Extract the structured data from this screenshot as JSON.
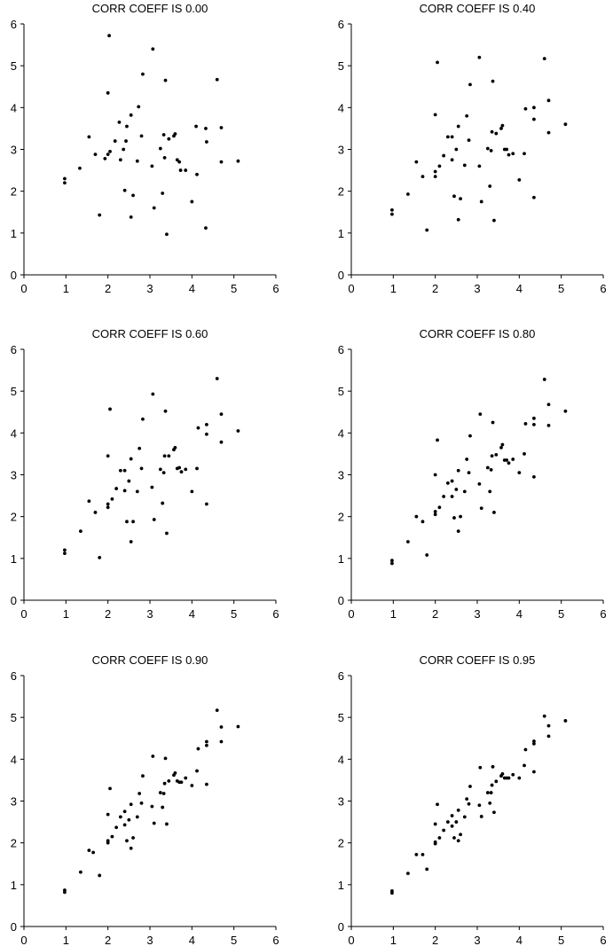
{
  "chart_data": [
    {
      "type": "scatter",
      "title": "CORR COEFF IS 0.00",
      "xlabel": "",
      "ylabel": "",
      "xlim": [
        0,
        6
      ],
      "ylim": [
        0,
        6
      ],
      "xticks": [
        0,
        1,
        2,
        3,
        4,
        5,
        6
      ],
      "yticks": [
        0,
        1,
        2,
        3,
        4,
        5,
        6
      ],
      "grid": false,
      "points": [
        [
          0.97,
          2.2
        ],
        [
          0.97,
          2.3
        ],
        [
          1.33,
          2.55
        ],
        [
          1.55,
          3.3
        ],
        [
          1.7,
          2.88
        ],
        [
          1.8,
          1.43
        ],
        [
          1.93,
          2.78
        ],
        [
          2.0,
          2.88
        ],
        [
          2.0,
          4.35
        ],
        [
          2.03,
          5.72
        ],
        [
          2.05,
          2.95
        ],
        [
          2.17,
          3.2
        ],
        [
          2.27,
          3.65
        ],
        [
          2.3,
          2.75
        ],
        [
          2.37,
          3.0
        ],
        [
          2.4,
          2.02
        ],
        [
          2.43,
          3.2
        ],
        [
          2.45,
          3.55
        ],
        [
          2.55,
          1.38
        ],
        [
          2.55,
          3.82
        ],
        [
          2.6,
          1.9
        ],
        [
          2.7,
          2.72
        ],
        [
          2.73,
          4.02
        ],
        [
          2.8,
          3.32
        ],
        [
          2.83,
          4.8
        ],
        [
          3.05,
          2.6
        ],
        [
          3.07,
          5.4
        ],
        [
          3.1,
          1.6
        ],
        [
          3.25,
          3.02
        ],
        [
          3.3,
          1.95
        ],
        [
          3.33,
          3.35
        ],
        [
          3.35,
          2.8
        ],
        [
          3.37,
          4.65
        ],
        [
          3.4,
          0.97
        ],
        [
          3.45,
          3.25
        ],
        [
          3.57,
          3.32
        ],
        [
          3.6,
          3.37
        ],
        [
          3.65,
          2.75
        ],
        [
          3.7,
          2.7
        ],
        [
          3.73,
          2.5
        ],
        [
          3.85,
          2.5
        ],
        [
          4.0,
          1.75
        ],
        [
          4.1,
          3.55
        ],
        [
          4.12,
          2.4
        ],
        [
          4.33,
          3.5
        ],
        [
          4.35,
          3.18
        ],
        [
          4.33,
          1.12
        ],
        [
          4.6,
          4.67
        ],
        [
          4.7,
          2.7
        ],
        [
          4.7,
          3.52
        ],
        [
          5.1,
          2.72
        ]
      ]
    },
    {
      "type": "scatter",
      "title": "CORR COEFF IS 0.40",
      "xlabel": "",
      "ylabel": "",
      "xlim": [
        0,
        6
      ],
      "ylim": [
        0,
        6
      ],
      "xticks": [
        0,
        1,
        2,
        3,
        4,
        5,
        6
      ],
      "yticks": [
        0,
        1,
        2,
        3,
        4,
        5,
        6
      ],
      "grid": false,
      "points": [
        [
          0.97,
          1.45
        ],
        [
          0.97,
          1.55
        ],
        [
          1.35,
          1.93
        ],
        [
          1.55,
          2.7
        ],
        [
          1.7,
          2.35
        ],
        [
          1.8,
          1.07
        ],
        [
          2.0,
          2.35
        ],
        [
          2.0,
          2.47
        ],
        [
          2.0,
          3.83
        ],
        [
          2.05,
          5.08
        ],
        [
          2.1,
          2.6
        ],
        [
          2.2,
          2.85
        ],
        [
          2.3,
          3.3
        ],
        [
          2.4,
          3.3
        ],
        [
          2.4,
          2.75
        ],
        [
          2.45,
          1.88
        ],
        [
          2.5,
          3.0
        ],
        [
          2.55,
          3.55
        ],
        [
          2.55,
          1.32
        ],
        [
          2.6,
          1.82
        ],
        [
          2.7,
          2.62
        ],
        [
          2.75,
          3.8
        ],
        [
          2.8,
          3.22
        ],
        [
          2.83,
          4.55
        ],
        [
          3.05,
          2.6
        ],
        [
          3.05,
          5.2
        ],
        [
          3.1,
          1.75
        ],
        [
          3.25,
          3.02
        ],
        [
          3.3,
          2.12
        ],
        [
          3.33,
          2.97
        ],
        [
          3.35,
          3.42
        ],
        [
          3.37,
          4.63
        ],
        [
          3.4,
          1.3
        ],
        [
          3.45,
          3.38
        ],
        [
          3.57,
          3.5
        ],
        [
          3.6,
          3.57
        ],
        [
          3.65,
          3.0
        ],
        [
          3.7,
          3.0
        ],
        [
          3.75,
          2.87
        ],
        [
          3.85,
          2.9
        ],
        [
          4.0,
          2.27
        ],
        [
          4.12,
          2.9
        ],
        [
          4.15,
          3.97
        ],
        [
          4.35,
          4.0
        ],
        [
          4.35,
          3.72
        ],
        [
          4.35,
          1.85
        ],
        [
          4.6,
          5.17
        ],
        [
          4.7,
          3.4
        ],
        [
          4.7,
          4.17
        ],
        [
          5.1,
          3.6
        ]
      ]
    },
    {
      "type": "scatter",
      "title": "CORR COEFF IS 0.60",
      "xlabel": "",
      "ylabel": "",
      "xlim": [
        0,
        6
      ],
      "ylim": [
        0,
        6
      ],
      "xticks": [
        0,
        1,
        2,
        3,
        4,
        5,
        6
      ],
      "yticks": [
        0,
        1,
        2,
        3,
        4,
        5,
        6
      ],
      "grid": false,
      "points": [
        [
          0.97,
          1.12
        ],
        [
          0.97,
          1.2
        ],
        [
          1.35,
          1.65
        ],
        [
          1.55,
          2.37
        ],
        [
          1.7,
          2.1
        ],
        [
          1.8,
          1.02
        ],
        [
          2.0,
          2.22
        ],
        [
          2.0,
          2.3
        ],
        [
          2.0,
          3.45
        ],
        [
          2.05,
          4.57
        ],
        [
          2.1,
          2.42
        ],
        [
          2.2,
          2.67
        ],
        [
          2.3,
          3.1
        ],
        [
          2.4,
          3.1
        ],
        [
          2.4,
          2.62
        ],
        [
          2.45,
          1.88
        ],
        [
          2.5,
          2.85
        ],
        [
          2.55,
          3.38
        ],
        [
          2.55,
          1.4
        ],
        [
          2.6,
          1.88
        ],
        [
          2.7,
          2.6
        ],
        [
          2.75,
          3.63
        ],
        [
          2.8,
          3.15
        ],
        [
          2.83,
          4.33
        ],
        [
          3.05,
          2.7
        ],
        [
          3.07,
          4.93
        ],
        [
          3.1,
          1.93
        ],
        [
          3.25,
          3.13
        ],
        [
          3.3,
          2.32
        ],
        [
          3.33,
          3.05
        ],
        [
          3.35,
          3.45
        ],
        [
          3.37,
          4.52
        ],
        [
          3.4,
          1.6
        ],
        [
          3.45,
          3.45
        ],
        [
          3.57,
          3.6
        ],
        [
          3.6,
          3.65
        ],
        [
          3.65,
          3.15
        ],
        [
          3.7,
          3.17
        ],
        [
          3.75,
          3.07
        ],
        [
          3.85,
          3.13
        ],
        [
          4.0,
          2.6
        ],
        [
          4.12,
          3.15
        ],
        [
          4.15,
          4.12
        ],
        [
          4.35,
          4.2
        ],
        [
          4.35,
          3.97
        ],
        [
          4.35,
          2.3
        ],
        [
          4.6,
          5.3
        ],
        [
          4.7,
          3.78
        ],
        [
          4.7,
          4.45
        ],
        [
          5.1,
          4.05
        ]
      ]
    },
    {
      "type": "scatter",
      "title": "CORR COEFF IS 0.80",
      "xlabel": "",
      "ylabel": "",
      "xlim": [
        0,
        6
      ],
      "ylim": [
        0,
        6
      ],
      "xticks": [
        0,
        1,
        2,
        3,
        4,
        5,
        6
      ],
      "yticks": [
        0,
        1,
        2,
        3,
        4,
        5,
        6
      ],
      "grid": false,
      "points": [
        [
          0.97,
          0.88
        ],
        [
          0.97,
          0.95
        ],
        [
          1.35,
          1.4
        ],
        [
          1.55,
          2.0
        ],
        [
          1.7,
          1.88
        ],
        [
          1.8,
          1.08
        ],
        [
          2.0,
          2.05
        ],
        [
          2.0,
          2.12
        ],
        [
          2.0,
          3.0
        ],
        [
          2.05,
          3.83
        ],
        [
          2.1,
          2.22
        ],
        [
          2.2,
          2.48
        ],
        [
          2.3,
          2.8
        ],
        [
          2.4,
          2.85
        ],
        [
          2.4,
          2.48
        ],
        [
          2.45,
          1.97
        ],
        [
          2.5,
          2.65
        ],
        [
          2.55,
          3.1
        ],
        [
          2.55,
          1.65
        ],
        [
          2.6,
          2.0
        ],
        [
          2.7,
          2.6
        ],
        [
          2.75,
          3.37
        ],
        [
          2.8,
          3.05
        ],
        [
          2.83,
          3.93
        ],
        [
          3.05,
          2.78
        ],
        [
          3.07,
          4.45
        ],
        [
          3.1,
          2.2
        ],
        [
          3.25,
          3.17
        ],
        [
          3.3,
          2.6
        ],
        [
          3.33,
          3.12
        ],
        [
          3.35,
          3.45
        ],
        [
          3.37,
          4.25
        ],
        [
          3.4,
          2.1
        ],
        [
          3.45,
          3.48
        ],
        [
          3.57,
          3.65
        ],
        [
          3.6,
          3.72
        ],
        [
          3.65,
          3.35
        ],
        [
          3.7,
          3.35
        ],
        [
          3.75,
          3.28
        ],
        [
          3.85,
          3.37
        ],
        [
          4.0,
          3.05
        ],
        [
          4.12,
          3.5
        ],
        [
          4.15,
          4.22
        ],
        [
          4.35,
          4.35
        ],
        [
          4.35,
          4.2
        ],
        [
          4.35,
          2.95
        ],
        [
          4.6,
          5.28
        ],
        [
          4.7,
          4.18
        ],
        [
          4.7,
          4.68
        ],
        [
          5.1,
          4.52
        ]
      ]
    },
    {
      "type": "scatter",
      "title": "CORR COEFF IS 0.90",
      "xlabel": "",
      "ylabel": "",
      "xlim": [
        0,
        6
      ],
      "ylim": [
        0,
        6
      ],
      "xticks": [
        0,
        1,
        2,
        3,
        4,
        5,
        6
      ],
      "yticks": [
        0,
        1,
        2,
        3,
        4,
        5,
        6
      ],
      "grid": false,
      "points": [
        [
          0.97,
          0.82
        ],
        [
          0.97,
          0.87
        ],
        [
          1.35,
          1.3
        ],
        [
          1.55,
          1.82
        ],
        [
          1.65,
          1.77
        ],
        [
          1.8,
          1.22
        ],
        [
          2.0,
          2.0
        ],
        [
          2.0,
          2.05
        ],
        [
          2.0,
          2.68
        ],
        [
          2.05,
          3.3
        ],
        [
          2.1,
          2.15
        ],
        [
          2.2,
          2.37
        ],
        [
          2.3,
          2.62
        ],
        [
          2.4,
          2.75
        ],
        [
          2.4,
          2.43
        ],
        [
          2.45,
          2.05
        ],
        [
          2.5,
          2.55
        ],
        [
          2.55,
          2.92
        ],
        [
          2.55,
          1.87
        ],
        [
          2.6,
          2.12
        ],
        [
          2.7,
          2.62
        ],
        [
          2.75,
          3.18
        ],
        [
          2.8,
          2.95
        ],
        [
          2.83,
          3.6
        ],
        [
          3.05,
          2.87
        ],
        [
          3.07,
          4.07
        ],
        [
          3.1,
          2.47
        ],
        [
          3.25,
          3.2
        ],
        [
          3.3,
          2.85
        ],
        [
          3.33,
          3.18
        ],
        [
          3.35,
          3.42
        ],
        [
          3.37,
          4.02
        ],
        [
          3.4,
          2.45
        ],
        [
          3.45,
          3.48
        ],
        [
          3.57,
          3.62
        ],
        [
          3.6,
          3.67
        ],
        [
          3.65,
          3.48
        ],
        [
          3.7,
          3.45
        ],
        [
          3.75,
          3.45
        ],
        [
          3.85,
          3.55
        ],
        [
          4.0,
          3.37
        ],
        [
          4.12,
          3.72
        ],
        [
          4.15,
          4.25
        ],
        [
          4.35,
          4.42
        ],
        [
          4.35,
          4.33
        ],
        [
          4.35,
          3.4
        ],
        [
          4.6,
          5.17
        ],
        [
          4.7,
          4.42
        ],
        [
          4.7,
          4.77
        ],
        [
          5.1,
          4.78
        ]
      ]
    },
    {
      "type": "scatter",
      "title": "CORR COEFF IS 0.95",
      "xlabel": "",
      "ylabel": "",
      "xlim": [
        0,
        6
      ],
      "ylim": [
        0,
        6
      ],
      "xticks": [
        0,
        1,
        2,
        3,
        4,
        5,
        6
      ],
      "yticks": [
        0,
        1,
        2,
        3,
        4,
        5,
        6
      ],
      "grid": false,
      "points": [
        [
          0.97,
          0.8
        ],
        [
          0.97,
          0.85
        ],
        [
          1.35,
          1.27
        ],
        [
          1.55,
          1.72
        ],
        [
          1.7,
          1.72
        ],
        [
          1.8,
          1.37
        ],
        [
          2.0,
          1.98
        ],
        [
          2.0,
          2.02
        ],
        [
          2.0,
          2.45
        ],
        [
          2.05,
          2.92
        ],
        [
          2.1,
          2.12
        ],
        [
          2.2,
          2.3
        ],
        [
          2.3,
          2.5
        ],
        [
          2.4,
          2.65
        ],
        [
          2.4,
          2.4
        ],
        [
          2.45,
          2.12
        ],
        [
          2.5,
          2.5
        ],
        [
          2.55,
          2.78
        ],
        [
          2.55,
          2.05
        ],
        [
          2.6,
          2.2
        ],
        [
          2.7,
          2.62
        ],
        [
          2.75,
          3.05
        ],
        [
          2.8,
          2.93
        ],
        [
          2.83,
          3.35
        ],
        [
          3.05,
          2.9
        ],
        [
          3.07,
          3.8
        ],
        [
          3.1,
          2.63
        ],
        [
          3.25,
          3.2
        ],
        [
          3.3,
          2.95
        ],
        [
          3.33,
          3.2
        ],
        [
          3.35,
          3.38
        ],
        [
          3.37,
          3.82
        ],
        [
          3.4,
          2.73
        ],
        [
          3.45,
          3.47
        ],
        [
          3.57,
          3.6
        ],
        [
          3.6,
          3.65
        ],
        [
          3.65,
          3.55
        ],
        [
          3.7,
          3.55
        ],
        [
          3.75,
          3.55
        ],
        [
          3.85,
          3.63
        ],
        [
          4.0,
          3.55
        ],
        [
          4.12,
          3.85
        ],
        [
          4.15,
          4.23
        ],
        [
          4.35,
          4.43
        ],
        [
          4.35,
          4.37
        ],
        [
          4.35,
          3.7
        ],
        [
          4.6,
          5.03
        ],
        [
          4.7,
          4.55
        ],
        [
          4.7,
          4.8
        ],
        [
          5.1,
          4.92
        ]
      ]
    }
  ]
}
